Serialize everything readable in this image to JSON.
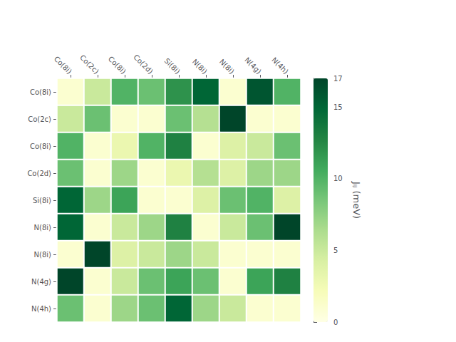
{
  "chart_data": {
    "type": "heatmap",
    "categories": [
      "Co(8i)",
      "Co(2c)",
      "Co(8i)",
      "Co(2d)",
      "Si(8i)",
      "N(8i)",
      "N(8i)",
      "N(4g)",
      "N(4h)"
    ],
    "values": [
      [
        1.0,
        5.0,
        10.0,
        9.0,
        12.0,
        15.0,
        1.0,
        16.0,
        10.0
      ],
      [
        5.0,
        9.0,
        1.0,
        1.0,
        9.0,
        6.0,
        17.0,
        1.0,
        1.0
      ],
      [
        10.0,
        1.0,
        3.0,
        10.0,
        13.0,
        1.0,
        4.0,
        5.0,
        9.0
      ],
      [
        9.0,
        1.0,
        7.0,
        1.0,
        3.0,
        6.0,
        4.0,
        7.0,
        7.0
      ],
      [
        15.0,
        7.0,
        11.0,
        1.0,
        1.0,
        4.0,
        9.0,
        10.0,
        4.0
      ],
      [
        15.0,
        1.0,
        5.0,
        7.0,
        13.0,
        1.0,
        5.0,
        9.0,
        17.0
      ],
      [
        1.0,
        17.0,
        4.0,
        5.0,
        7.0,
        5.0,
        1.0,
        1.0,
        1.0
      ],
      [
        17.0,
        1.0,
        5.0,
        9.0,
        11.0,
        9.0,
        1.0,
        11.0,
        13.0
      ],
      [
        9.0,
        1.0,
        7.0,
        9.0,
        15.0,
        7.0,
        5.0,
        1.0,
        1.0
      ]
    ],
    "colorbar": {
      "label": "Jᵢⱼ (meV)",
      "range": [
        0,
        17
      ],
      "ticks": [
        0,
        5,
        10,
        15
      ],
      "colors": [
        "#ffffe5",
        "#f7fcb9",
        "#d9f0a3",
        "#addd8e",
        "#78c679",
        "#41ab5d",
        "#238443",
        "#006837",
        "#004529"
      ]
    },
    "grid": false
  }
}
